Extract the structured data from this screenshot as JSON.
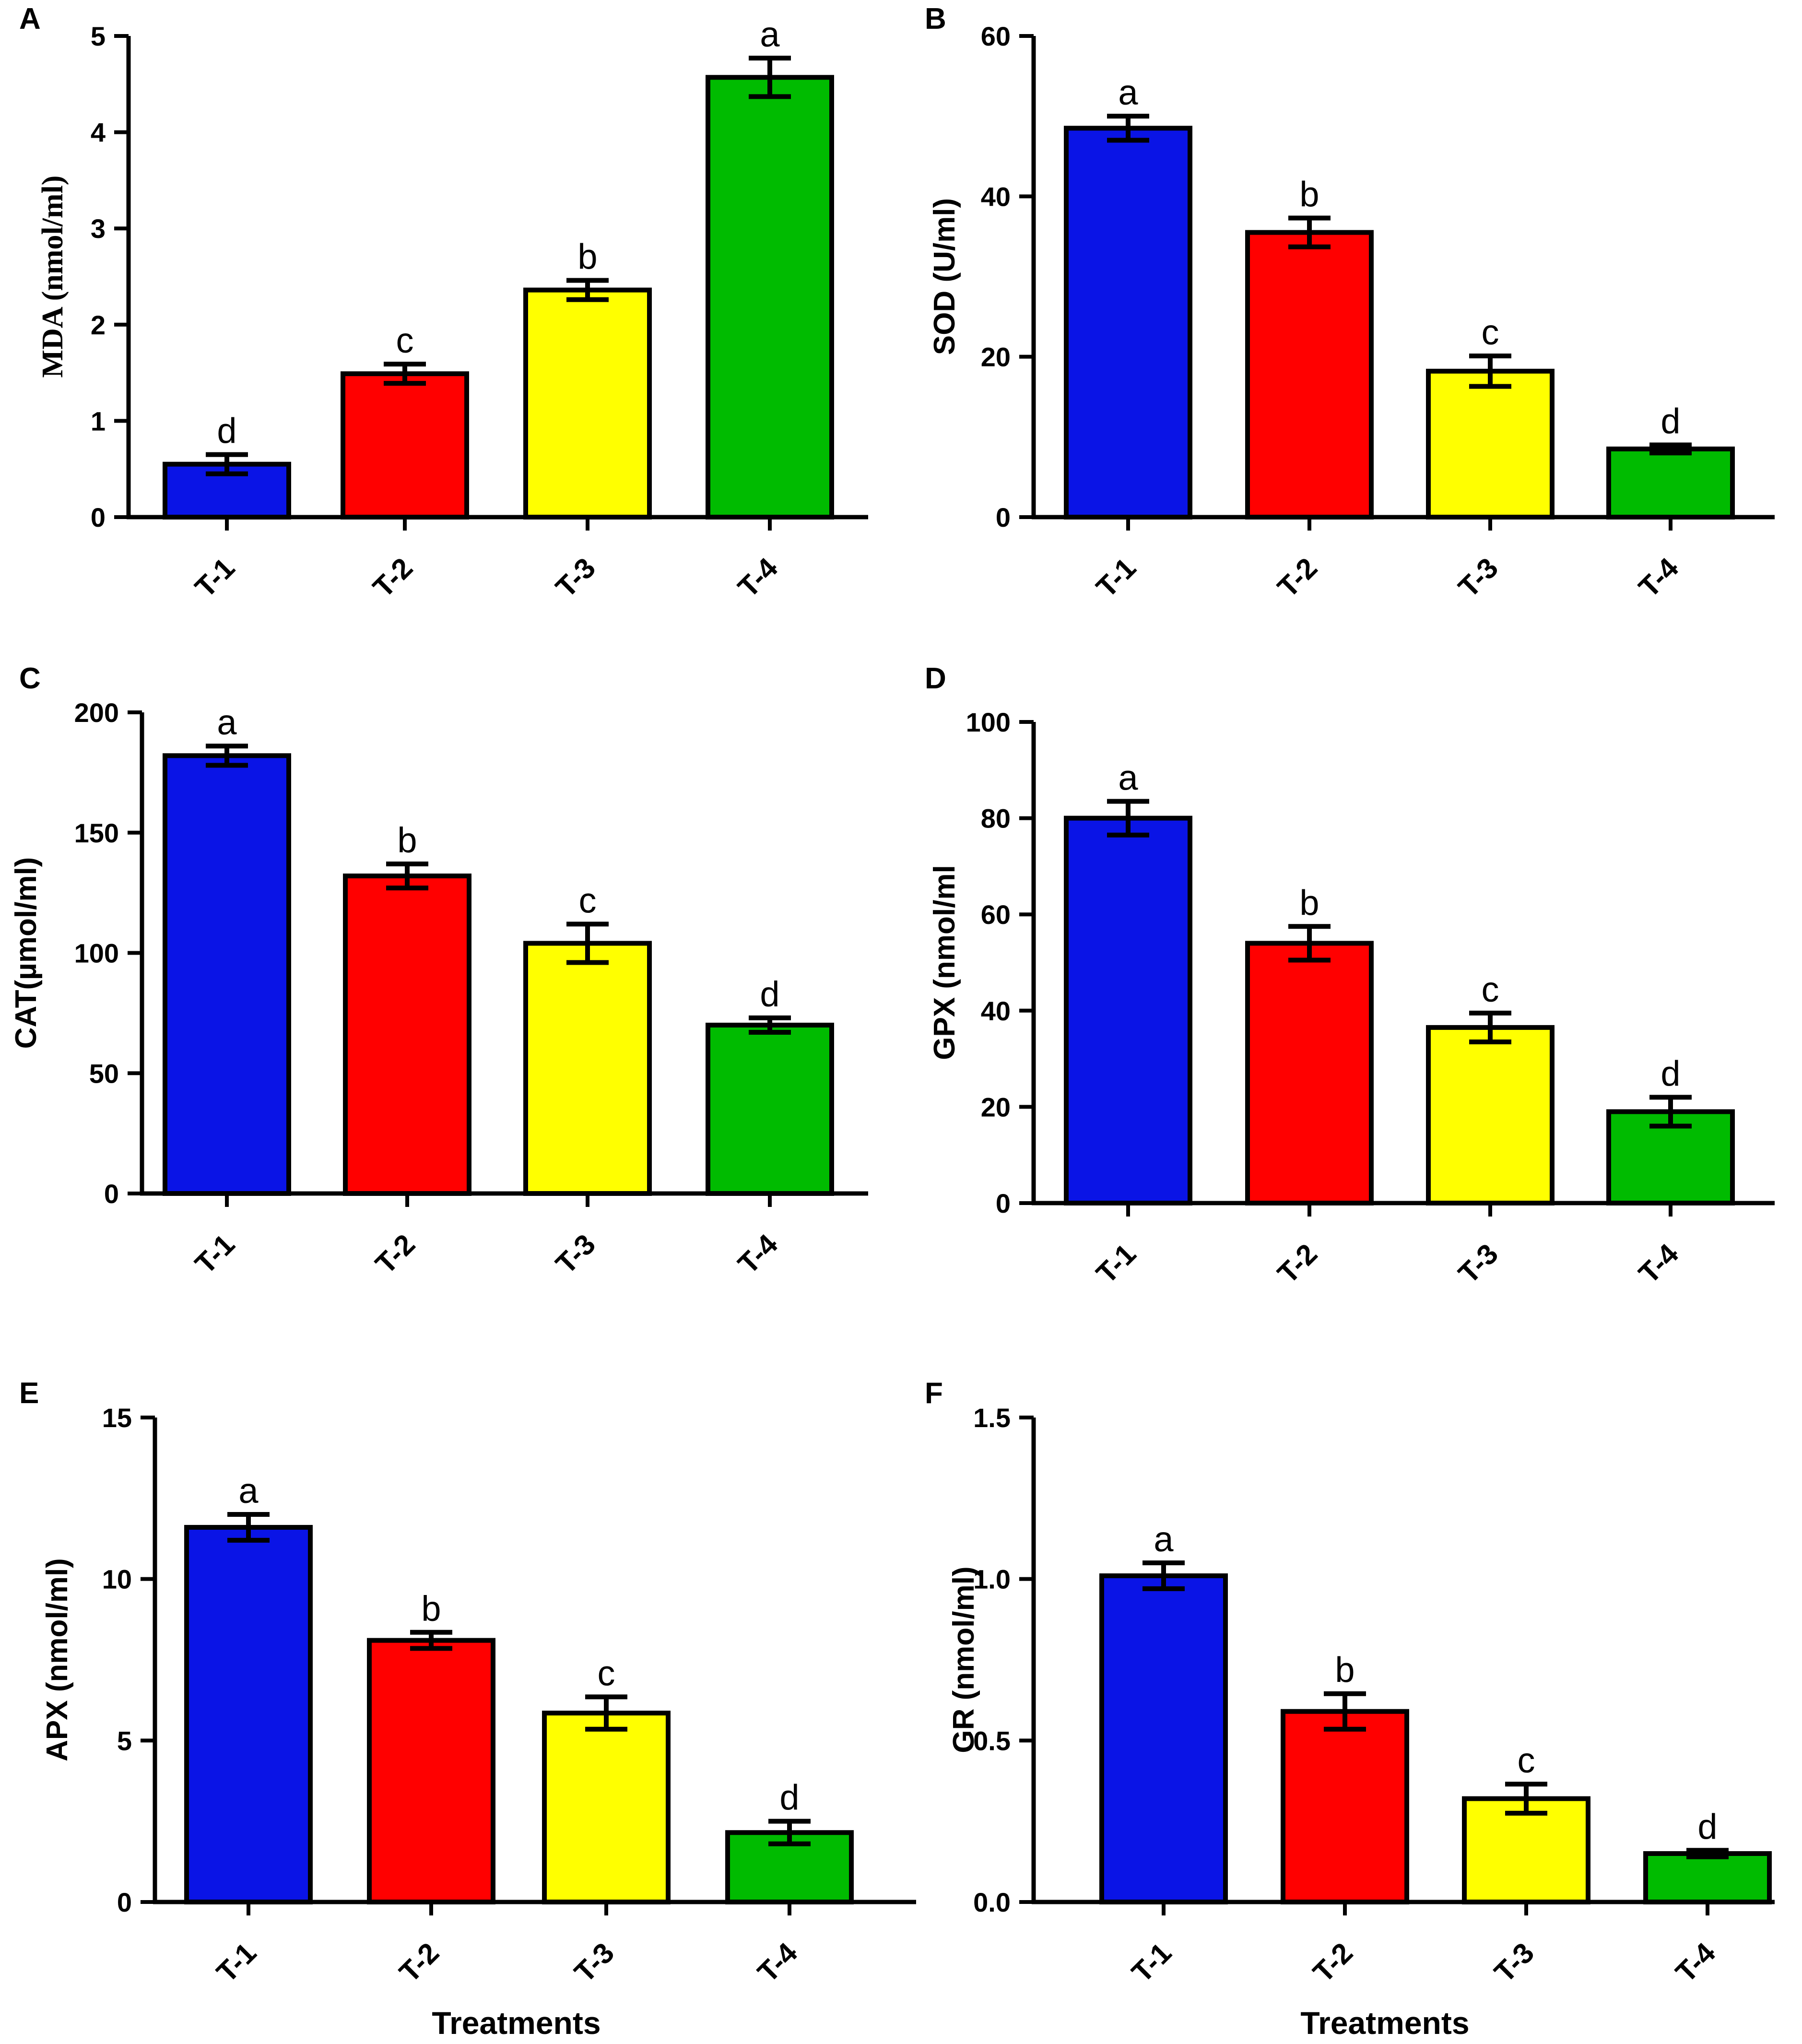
{
  "colors": {
    "T-1": "#0a14e6",
    "T-2": "#ff0000",
    "T-3": "#ffff00",
    "T-4": "#00bb00",
    "axis": "#000000"
  },
  "chart_data": [
    {
      "panel": "A",
      "type": "bar",
      "categories": [
        "T-1",
        "T-2",
        "T-3",
        "T-4"
      ],
      "values": [
        0.55,
        1.49,
        2.36,
        4.57
      ],
      "errors": [
        0.1,
        0.1,
        0.1,
        0.2
      ],
      "significance": [
        "d",
        "c",
        "b",
        "a"
      ],
      "ylabel": "MDA (nmol/ml)",
      "xlabel": "",
      "ylim": [
        0,
        5
      ],
      "yticks": [
        0,
        1,
        2,
        3,
        4,
        5
      ],
      "ytick_labels": [
        "0",
        "1",
        "2",
        "3",
        "4",
        "5"
      ]
    },
    {
      "panel": "B",
      "type": "bar",
      "categories": [
        "T-1",
        "T-2",
        "T-3",
        "T-4"
      ],
      "values": [
        48.5,
        35.5,
        18.2,
        8.5
      ],
      "errors": [
        1.5,
        1.8,
        1.9,
        0.5
      ],
      "significance": [
        "a",
        "b",
        "c",
        "d"
      ],
      "ylabel": "SOD (U/ml)",
      "xlabel": "",
      "ylim": [
        0,
        60
      ],
      "yticks": [
        0,
        20,
        40,
        60
      ],
      "ytick_labels": [
        "0",
        "20",
        "40",
        "60"
      ]
    },
    {
      "panel": "C",
      "type": "bar",
      "categories": [
        "T-1",
        "T-2",
        "T-3",
        "T-4"
      ],
      "values": [
        182,
        132,
        104,
        70
      ],
      "errors": [
        4,
        5,
        8,
        3
      ],
      "significance": [
        "a",
        "b",
        "c",
        "d"
      ],
      "ylabel": "CAT(µmol/ml)",
      "xlabel": "",
      "ylim": [
        0,
        200
      ],
      "yticks": [
        0,
        50,
        100,
        150,
        200
      ],
      "ytick_labels": [
        "0",
        "50",
        "100",
        "150",
        "200"
      ]
    },
    {
      "panel": "D",
      "type": "bar",
      "categories": [
        "T-1",
        "T-2",
        "T-3",
        "T-4"
      ],
      "values": [
        80,
        54,
        36.5,
        19
      ],
      "errors": [
        3.5,
        3.5,
        3,
        3
      ],
      "significance": [
        "a",
        "b",
        "c",
        "d"
      ],
      "ylabel": "GPX (nmol/ml",
      "xlabel": "",
      "ylim": [
        0,
        100
      ],
      "yticks": [
        0,
        20,
        40,
        60,
        80,
        100
      ],
      "ytick_labels": [
        "0",
        "20",
        "40",
        "60",
        "80",
        "100"
      ]
    },
    {
      "panel": "E",
      "type": "bar",
      "categories": [
        "T-1",
        "T-2",
        "T-3",
        "T-4"
      ],
      "values": [
        11.6,
        8.1,
        5.85,
        2.15
      ],
      "errors": [
        0.4,
        0.25,
        0.5,
        0.35
      ],
      "significance": [
        "a",
        "b",
        "c",
        "d"
      ],
      "ylabel": "APX (nmol/ml)",
      "xlabel": "Treatments",
      "ylim": [
        0,
        15
      ],
      "yticks": [
        0,
        5,
        10,
        15
      ],
      "ytick_labels": [
        "0",
        "5",
        "10",
        "15"
      ]
    },
    {
      "panel": "F",
      "type": "bar",
      "categories": [
        "T-1",
        "T-2",
        "T-3",
        "T-4"
      ],
      "values": [
        1.01,
        0.59,
        0.32,
        0.15
      ],
      "errors": [
        0.04,
        0.055,
        0.045,
        0.01
      ],
      "significance": [
        "a",
        "b",
        "c",
        "d"
      ],
      "ylabel": "GR (nmol/ml)",
      "xlabel": "Treatments",
      "ylim": [
        0,
        1.5
      ],
      "yticks": [
        0,
        0.5,
        1.0,
        1.5
      ],
      "ytick_labels": [
        "0.0",
        "0.5",
        "1.0",
        "1.5"
      ]
    }
  ]
}
